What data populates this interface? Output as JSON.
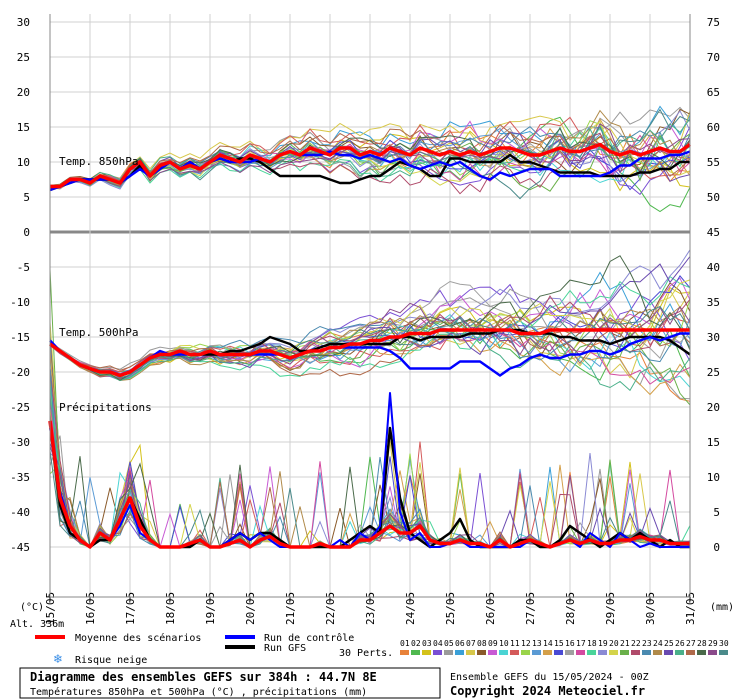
{
  "chart_data": {
    "type": "line",
    "title": "Diagramme des ensembles GEFS sur 384h : 44.7N 8E",
    "subtitle": "Températures 850hPa et 500hPa (°C) , précipitations (mm)",
    "run_info": "Ensemble GEFS du 15/05/2024 - 00Z",
    "copyright": "Copyright 2024 Meteociel.fr",
    "altitude": "Alt. 336m",
    "left_unit": "(°C)",
    "right_unit": "(mm)",
    "left_ticks": [
      "30",
      "25",
      "20",
      "15",
      "10",
      "5",
      "0",
      "-5",
      "-10",
      "-15",
      "-20",
      "-25",
      "-30",
      "-35",
      "-40",
      "-45"
    ],
    "right_ticks": [
      "75",
      "70",
      "65",
      "60",
      "55",
      "50",
      "45",
      "40",
      "35",
      "30",
      "25",
      "20",
      "15",
      "10",
      "5",
      "0"
    ],
    "x_ticks": [
      "15/05",
      "16/05",
      "17/05",
      "18/05",
      "19/05",
      "20/05",
      "21/05",
      "22/05",
      "23/05",
      "24/05",
      "25/05",
      "26/05",
      "27/05",
      "28/05",
      "29/05",
      "30/05",
      "31/05"
    ],
    "panel_labels": {
      "t850": "Temp. 850hPa",
      "t500": "Temp. 500hPa",
      "precip": "Précipitations"
    },
    "legend": {
      "mean": "Moyenne des scénarios",
      "control": "Run de contrôle",
      "gfs": "Run GFS",
      "snow": "Risque neige",
      "perts": "30 Perts.",
      "members": [
        "01",
        "02",
        "03",
        "04",
        "05",
        "06",
        "07",
        "08",
        "09",
        "10",
        "11",
        "12",
        "13",
        "14",
        "15",
        "16",
        "17",
        "18",
        "19",
        "20",
        "21",
        "22",
        "23",
        "24",
        "25",
        "26",
        "27",
        "28",
        "29",
        "30"
      ]
    },
    "colors": {
      "mean": "#ff0000",
      "control": "#0000ff",
      "gfs": "#000000",
      "snow": "#3a8ee6",
      "members": [
        "#e8823a",
        "#4fb84f",
        "#d4c21a",
        "#7a4fd4",
        "#9a9a9a",
        "#3aa0d8",
        "#d8c84a",
        "#8a5a2a",
        "#c85ad4",
        "#4ad4d4",
        "#d45a5a",
        "#9ad44a",
        "#5a9ad4",
        "#d4a04a",
        "#4a4ad4",
        "#a0a0a0",
        "#d44aa0",
        "#4ad49a",
        "#8a8ad4",
        "#d4d44a",
        "#6ab04a",
        "#b04a6a",
        "#4a8ab0",
        "#b08a4a",
        "#6a4ab0",
        "#4ab08a",
        "#b06a4a",
        "#4a6a4a",
        "#8a4a8a",
        "#4a8a8a"
      ]
    },
    "mean_t850": [
      6.5,
      6.5,
      7.5,
      7.5,
      7,
      8,
      7.5,
      7,
      9,
      10,
      8,
      9.5,
      10,
      9,
      9.5,
      9,
      10,
      11,
      10.5,
      10,
      11,
      10.5,
      10,
      11,
      11.5,
      11,
      12,
      11.5,
      11,
      12,
      12,
      11,
      11.5,
      11,
      12,
      11.5,
      11,
      12,
      11.5,
      11,
      11.5,
      11,
      11.5,
      11,
      11.5,
      12,
      12,
      11.5,
      11,
      11,
      11.5,
      12,
      11.5,
      11.5,
      12,
      12.5,
      11.5,
      11,
      11.5,
      11,
      11.5,
      12,
      11.5,
      11.5,
      12.5
    ],
    "mean_t500": [
      -16,
      -17,
      -18,
      -19,
      -19.5,
      -20,
      -20,
      -20.5,
      -20,
      -19,
      -18,
      -17.5,
      -17.5,
      -17,
      -17.5,
      -17.5,
      -17,
      -17.5,
      -17.5,
      -17.5,
      -17.5,
      -17,
      -17,
      -17.5,
      -18,
      -17.5,
      -17,
      -17,
      -16.5,
      -16.5,
      -16,
      -16,
      -15.5,
      -15.5,
      -15,
      -15,
      -14.5,
      -14.5,
      -14.5,
      -14,
      -14,
      -14,
      -14,
      -14,
      -14,
      -14,
      -14,
      -14.5,
      -14.5,
      -14.5,
      -14,
      -14,
      -14,
      -14,
      -14,
      -14,
      -14,
      -14,
      -14,
      -14,
      -14,
      -14,
      -14,
      -14,
      -14
    ],
    "control_t850": [
      6,
      6.5,
      7,
      7.5,
      7.5,
      7.5,
      7.5,
      7,
      8,
      9,
      8,
      9,
      10,
      9,
      10,
      9,
      10,
      10.5,
      10,
      10,
      10,
      10.5,
      10,
      11,
      11.5,
      11,
      11,
      11,
      11.5,
      11,
      11,
      10.5,
      11,
      10.5,
      10,
      10.5,
      9.5,
      9,
      9.5,
      10,
      9.5,
      10,
      9,
      8,
      7.5,
      8.5,
      8,
      8.5,
      9,
      9,
      9,
      8,
      8,
      8,
      8,
      8,
      8.5,
      9.5,
      9.5,
      10.5,
      10.5,
      10.5,
      11,
      11,
      11.5
    ],
    "control_t500": [
      -15.5,
      -17,
      -18,
      -19,
      -19.5,
      -20,
      -20,
      -20.5,
      -20,
      -19,
      -18,
      -17,
      -17.5,
      -17.5,
      -17.5,
      -17.5,
      -17,
      -17.5,
      -17.5,
      -17.5,
      -17.5,
      -17.5,
      -17.5,
      -17.5,
      -18,
      -17.5,
      -17,
      -17,
      -16.5,
      -16.5,
      -16.5,
      -16.5,
      -16.5,
      -16.5,
      -17,
      -18,
      -19.5,
      -19.5,
      -19.5,
      -19.5,
      -19.5,
      -18.5,
      -18.5,
      -18.5,
      -19.5,
      -20.5,
      -19.5,
      -19,
      -18,
      -17.5,
      -18,
      -18,
      -17.5,
      -17.5,
      -17,
      -17,
      -17.5,
      -17,
      -16,
      -15.5,
      -15,
      -15.5,
      -15,
      -14.5,
      -14.5
    ],
    "gfs_t850": [
      6,
      6.5,
      7,
      7.5,
      7.5,
      7.5,
      7.5,
      7,
      8,
      9.5,
      8,
      9,
      10,
      9,
      10,
      9,
      10,
      10.5,
      10,
      10.5,
      10.5,
      10,
      9,
      8,
      8,
      8,
      8,
      8,
      7.5,
      7,
      7,
      7.5,
      8,
      8,
      9,
      10,
      9.5,
      9,
      8,
      8,
      10.5,
      10.5,
      10,
      10,
      10,
      10,
      11,
      10,
      10,
      9.5,
      9,
      8.5,
      8.5,
      8.5,
      8.5,
      8,
      8,
      8,
      8,
      8.5,
      8.5,
      9,
      9,
      10,
      10
    ],
    "gfs_t500": [
      -16,
      -17,
      -18,
      -19,
      -19.5,
      -20,
      -20,
      -20.5,
      -20,
      -19,
      -18,
      -17.5,
      -17.5,
      -17,
      -17.5,
      -17.5,
      -17.5,
      -17.5,
      -17,
      -17,
      -16.5,
      -16,
      -15,
      -15.5,
      -16,
      -17,
      -17,
      -16.5,
      -16,
      -16,
      -16,
      -16,
      -16,
      -16,
      -16,
      -15,
      -15,
      -15.5,
      -15,
      -15,
      -15,
      -15,
      -14.5,
      -14.5,
      -14.5,
      -14,
      -14,
      -14,
      -14.5,
      -14.5,
      -14.5,
      -15,
      -15,
      -15.5,
      -15.5,
      -15.5,
      -16,
      -15.5,
      -15,
      -15,
      -15,
      -15,
      -15.5,
      -16.5,
      -17.5
    ],
    "mean_precip": [
      18,
      7,
      3,
      1,
      0,
      2,
      1,
      4,
      7,
      3,
      1,
      0,
      0,
      0,
      0.5,
      1,
      0,
      0,
      0.5,
      1,
      0,
      1,
      1.5,
      0.5,
      0,
      0,
      0,
      0.5,
      0,
      0,
      0,
      1,
      1,
      2,
      3,
      2,
      2,
      3,
      1,
      0.5,
      0.5,
      1,
      0.5,
      0.5,
      0,
      1,
      0,
      0.5,
      1,
      0.5,
      0,
      0.5,
      1,
      0.5,
      1,
      0.5,
      0.5,
      1,
      1,
      1.5,
      1,
      1,
      0.5,
      0.5,
      0.5
    ],
    "control_precip": [
      17,
      8,
      3,
      1,
      0,
      2,
      1,
      3,
      6,
      2,
      1,
      0,
      0,
      0,
      0.5,
      1,
      0,
      0,
      1,
      2,
      1,
      2,
      1,
      0,
      0,
      0,
      0,
      0.5,
      0,
      1,
      0,
      2,
      1,
      3,
      22,
      5,
      1,
      2,
      0,
      0,
      0.5,
      1,
      0,
      0,
      0,
      0,
      0,
      0,
      1,
      0.5,
      0,
      0.5,
      1,
      0,
      2,
      1,
      0,
      2,
      1,
      0,
      0.5,
      0,
      0,
      0,
      0
    ],
    "gfs_precip": [
      18,
      6,
      2,
      1,
      0,
      1,
      1,
      4,
      7,
      4,
      1,
      0,
      0,
      0,
      0,
      1,
      0,
      0,
      1,
      2,
      1,
      2,
      2,
      1,
      0,
      0,
      0,
      0,
      0,
      0,
      1,
      2,
      3,
      2,
      17,
      7,
      2,
      1,
      0,
      1,
      2,
      4,
      1,
      0,
      0,
      0,
      0,
      1,
      1,
      0,
      0,
      1,
      3,
      2,
      1,
      0,
      1,
      2,
      1,
      2,
      1,
      0,
      1,
      0,
      0
    ]
  }
}
